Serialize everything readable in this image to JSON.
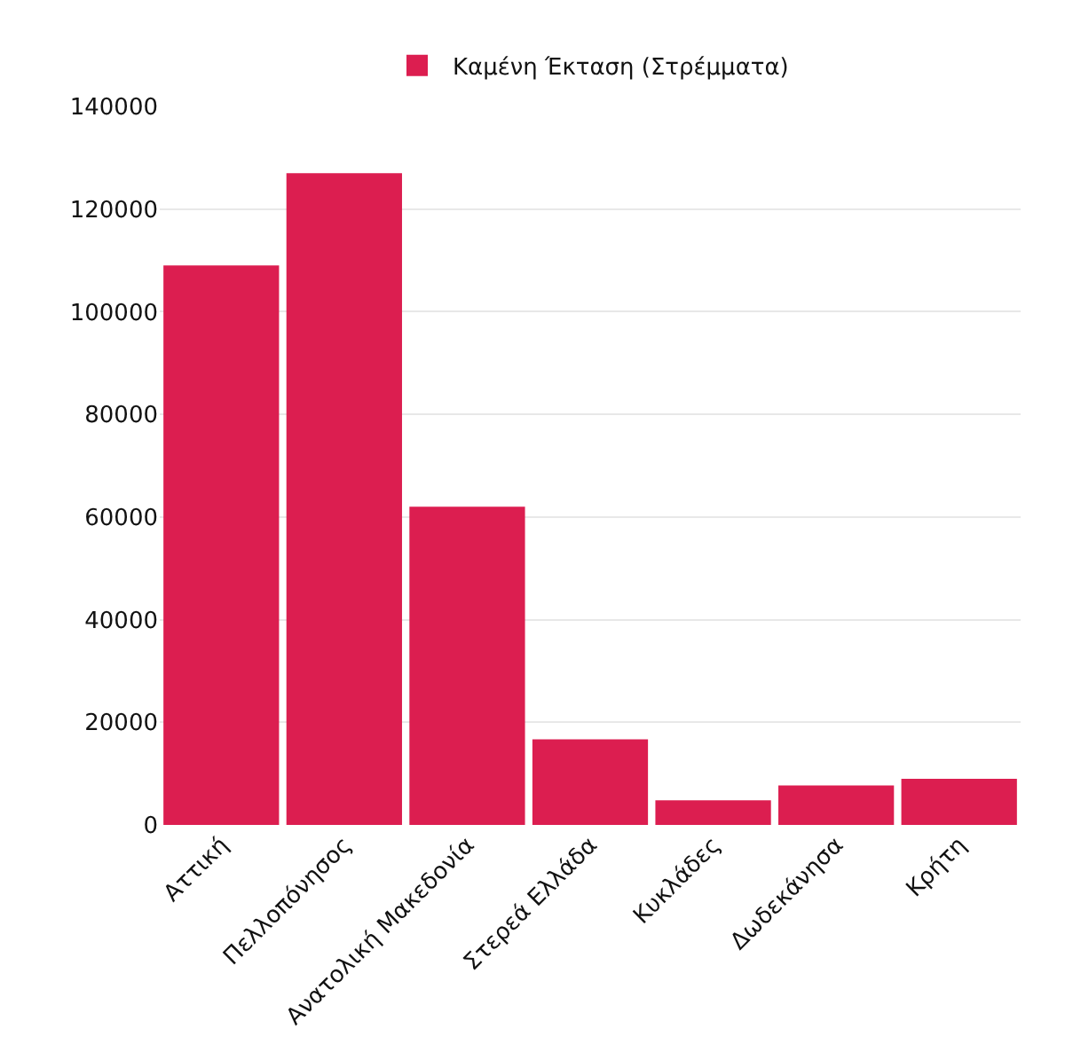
{
  "chart_data": {
    "type": "bar",
    "categories": [
      "Αττική",
      "Πελλοπόνησος",
      "Ανατολική Μακεδονία",
      "Στερεά Ελλάδα",
      "Κυκλάδες",
      "Δωδεκάνησα",
      "Κρήτη"
    ],
    "series": [
      {
        "name": "Καμένη Έκταση (Στρέμματα)",
        "color": "#dc1e50",
        "values": [
          109000,
          127000,
          62000,
          16700,
          4800,
          7700,
          9000
        ]
      }
    ],
    "ylim": [
      0,
      140000
    ],
    "yticks": [
      0,
      20000,
      40000,
      60000,
      80000,
      100000,
      120000,
      140000
    ],
    "grid": "y",
    "legend": "top"
  }
}
